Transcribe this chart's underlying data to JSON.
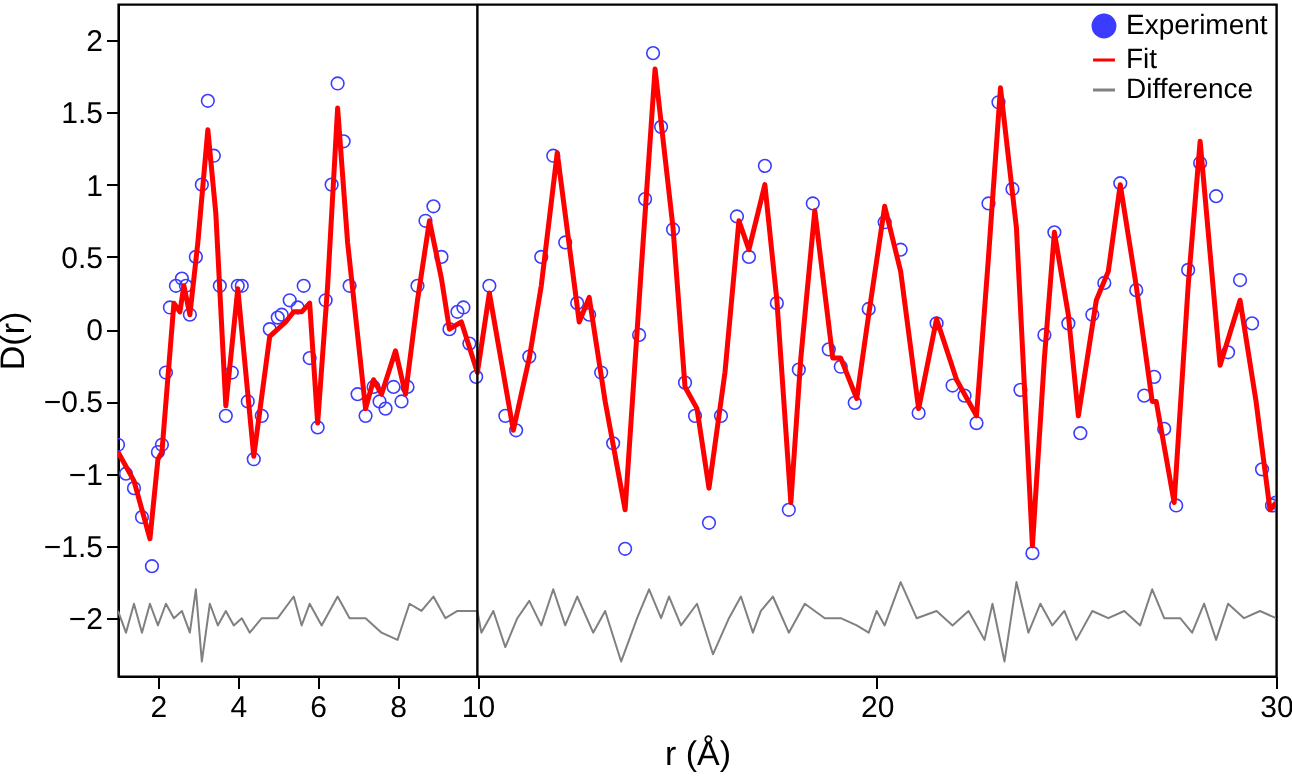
{
  "chart_data": {
    "type": "line",
    "xlabel": "r (Å)",
    "ylabel": "D(r)",
    "xlim": [
      1,
      30
    ],
    "xticks": [
      2,
      4,
      6,
      8,
      10,
      20,
      30
    ],
    "ylim": [
      -2.4,
      2.25
    ],
    "yticks": [
      -2,
      -1.5,
      -1,
      -0.5,
      0,
      0.5,
      1,
      1.5,
      2
    ],
    "grid": false,
    "legend": "top right",
    "ref_lines": [
      {
        "axis": "x",
        "value": 10,
        "color": "#000000"
      }
    ],
    "series": [
      {
        "name": "Experiment",
        "type": "scatter",
        "marker": "circle",
        "color": "#3c3cff",
        "x": [
          1,
          1.2,
          1.4,
          1.6,
          1.85,
          2,
          2.1,
          2.2,
          2.3,
          2.45,
          2.6,
          2.7,
          2.8,
          2.95,
          3.1,
          3.25,
          3.4,
          3.55,
          3.7,
          3.85,
          4,
          4.1,
          4.25,
          4.4,
          4.6,
          4.8,
          5,
          5.1,
          5.3,
          5.5,
          5.65,
          5.8,
          6,
          6.2,
          6.35,
          6.5,
          6.65,
          6.8,
          7,
          7.2,
          7.4,
          7.55,
          7.7,
          7.9,
          8.1,
          8.25,
          8.5,
          8.7,
          8.9,
          9.1,
          9.3,
          9.5,
          9.65,
          9.8,
          9.97,
          10.3,
          10.7,
          10.97,
          11.3,
          11.6,
          11.9,
          12.2,
          12.5,
          12.8,
          13.1,
          13.4,
          13.7,
          14.05,
          14.2,
          14.4,
          14.6,
          14.9,
          15.2,
          15.45,
          15.8,
          16.1,
          16.5,
          16.8,
          17.2,
          17.5,
          17.8,
          18.05,
          18.4,
          18.8,
          19.1,
          19.45,
          19.8,
          20.2,
          20.6,
          21.05,
          21.5,
          21.9,
          22.2,
          22.5,
          22.8,
          23.05,
          23.4,
          23.6,
          23.9,
          24.2,
          24.45,
          24.8,
          25.1,
          25.4,
          25.7,
          26.1,
          26.5,
          26.7,
          26.95,
          27.2,
          27.5,
          27.8,
          28.1,
          28.5,
          28.8,
          29.1,
          29.4,
          29.65,
          29.9,
          30
        ],
        "values": [
          -0.8,
          -1,
          -1.1,
          -1.3,
          -1.64,
          -0.85,
          -0.8,
          -0.3,
          0.15,
          0.3,
          0.35,
          0.3,
          0.1,
          0.5,
          1,
          1.58,
          1.2,
          0.3,
          -0.6,
          -0.3,
          0.3,
          0.3,
          -0.5,
          -0.9,
          -0.6,
          0,
          0.08,
          0.1,
          0.2,
          0.15,
          0.3,
          -0.2,
          -0.68,
          0.2,
          1,
          1.7,
          1.3,
          0.3,
          -0.45,
          -0.6,
          -0.4,
          -0.5,
          -0.55,
          -0.4,
          -0.5,
          -0.4,
          0.3,
          0.75,
          0.85,
          0.5,
          0,
          0.12,
          0.15,
          -0.1,
          -0.33,
          0.3,
          -0.6,
          -0.7,
          -0.19,
          0.5,
          1.2,
          0.6,
          0.18,
          0.1,
          -0.3,
          -0.79,
          -1.52,
          -0.04,
          0.9,
          1.91,
          1.4,
          0.69,
          -0.37,
          -0.6,
          -1.34,
          -0.6,
          0.78,
          0.5,
          1.13,
          0.18,
          -1.25,
          -0.28,
          0.87,
          -0.14,
          -0.26,
          -0.51,
          0.14,
          0.74,
          0.55,
          -0.58,
          0.04,
          -0.39,
          -0.46,
          -0.65,
          0.87,
          1.57,
          0.97,
          -0.42,
          -1.55,
          -0.04,
          0.67,
          0.04,
          -0.72,
          0.1,
          0.32,
          1.01,
          0.27,
          -0.46,
          -0.33,
          -0.69,
          -1.22,
          0.41,
          1.15,
          0.92,
          -0.16,
          0.34,
          0.04,
          -0.97,
          -1.22,
          -1.2
        ]
      },
      {
        "name": "Fit",
        "type": "line",
        "color": "#ff0000",
        "x": [
          1,
          1.4,
          1.8,
          2,
          2.1,
          2.4,
          2.55,
          2.65,
          2.8,
          3,
          3.25,
          3.45,
          3.7,
          4,
          4.4,
          4.8,
          5.2,
          5.4,
          5.6,
          5.8,
          6,
          6.25,
          6.5,
          6.75,
          7.2,
          7.4,
          7.6,
          7.95,
          8.2,
          8.5,
          8.8,
          9.1,
          9.3,
          9.6,
          10,
          10.3,
          10.9,
          11.3,
          11.6,
          12,
          12.55,
          12.8,
          13.2,
          13.7,
          14.1,
          14.45,
          14.9,
          15.2,
          15.5,
          15.8,
          16.2,
          16.55,
          16.8,
          17.2,
          17.5,
          17.85,
          18.1,
          18.45,
          18.9,
          19.1,
          19.5,
          19.8,
          20.2,
          20.6,
          21.05,
          21.5,
          22,
          22.5,
          22.8,
          23.1,
          23.5,
          23.9,
          24.2,
          24.45,
          24.8,
          25.05,
          25.5,
          25.8,
          26.1,
          26.5,
          26.9,
          27,
          27.45,
          27.8,
          28.1,
          28.6,
          29.1,
          29.5,
          29.85,
          30
        ],
        "values": [
          -0.85,
          -1.05,
          -1.45,
          -0.9,
          -0.85,
          0.18,
          0.12,
          0.3,
          0.1,
          0.6,
          1.38,
          0.8,
          -0.53,
          0.28,
          -0.88,
          -0.05,
          0.05,
          0.12,
          0.12,
          0.18,
          -0.65,
          0.3,
          1.53,
          0.6,
          -0.55,
          -0.35,
          -0.45,
          -0.15,
          -0.45,
          0.2,
          0.75,
          0.35,
          0,
          0.05,
          -0.3,
          0.25,
          -0.7,
          -0.2,
          0.3,
          1.22,
          0.05,
          0.22,
          -0.5,
          -1.25,
          0.4,
          1.8,
          0.7,
          -0.4,
          -0.55,
          -1.1,
          -0.3,
          0.75,
          0.55,
          1,
          0.2,
          -1.2,
          -0.2,
          0.82,
          -0.2,
          -0.2,
          -0.48,
          0.1,
          0.85,
          0.4,
          -0.55,
          0.07,
          -0.35,
          -0.6,
          0.5,
          1.67,
          0.7,
          -1.5,
          -0.2,
          0.67,
          0.1,
          -0.6,
          0.2,
          0.4,
          1,
          0.3,
          -0.5,
          -0.5,
          -1.2,
          0.3,
          1.3,
          -0.25,
          0.2,
          -0.5,
          -1.25,
          -1.2
        ]
      },
      {
        "name": "Difference",
        "type": "line",
        "color": "#808080",
        "x": [
          1,
          1.2,
          1.4,
          1.6,
          1.8,
          2,
          2.2,
          2.4,
          2.6,
          2.8,
          2.95,
          3.1,
          3.3,
          3.5,
          3.7,
          3.9,
          4.1,
          4.3,
          4.6,
          5,
          5.4,
          5.6,
          5.8,
          6.1,
          6.5,
          6.8,
          7.2,
          7.6,
          8,
          8.3,
          8.6,
          8.9,
          9.2,
          9.5,
          9.8,
          10,
          10.1,
          10.4,
          10.7,
          11,
          11.3,
          11.6,
          11.9,
          12.2,
          12.5,
          12.9,
          13.2,
          13.6,
          14,
          14.3,
          14.6,
          14.8,
          15.1,
          15.5,
          15.9,
          16.3,
          16.6,
          16.9,
          17.1,
          17.4,
          17.8,
          18.2,
          18.7,
          19.1,
          19.5,
          19.8,
          20,
          20.2,
          20.6,
          21,
          21.5,
          21.9,
          22.3,
          22.7,
          22.9,
          23.2,
          23.5,
          23.8,
          24.1,
          24.4,
          24.7,
          25,
          25.4,
          25.8,
          26.2,
          26.6,
          26.9,
          27.2,
          27.6,
          27.9,
          28.2,
          28.5,
          28.8,
          29.2,
          29.6,
          30
        ],
        "values": [
          -1.95,
          -2.1,
          -1.9,
          -2.1,
          -1.9,
          -2.05,
          -1.9,
          -2,
          -1.95,
          -2.1,
          -1.8,
          -2.3,
          -1.9,
          -2.05,
          -1.95,
          -2.05,
          -2,
          -2.1,
          -2,
          -2,
          -1.85,
          -2.05,
          -1.9,
          -2.05,
          -1.85,
          -2,
          -2,
          -2.1,
          -2.15,
          -1.9,
          -1.95,
          -1.85,
          -2,
          -1.95,
          -1.95,
          -1.95,
          -2.1,
          -1.95,
          -2.2,
          -2,
          -1.88,
          -2.05,
          -1.8,
          -2.05,
          -1.85,
          -2.1,
          -1.95,
          -2.3,
          -2,
          -1.8,
          -2,
          -1.85,
          -2.05,
          -1.9,
          -2.25,
          -2,
          -1.85,
          -2.1,
          -1.95,
          -1.85,
          -2.1,
          -1.9,
          -2,
          -2,
          -2.05,
          -2.1,
          -1.95,
          -2.05,
          -1.75,
          -2,
          -1.95,
          -2.05,
          -1.95,
          -2.15,
          -1.9,
          -2.3,
          -1.75,
          -2.1,
          -1.9,
          -2.05,
          -1.95,
          -2.15,
          -1.95,
          -2,
          -1.95,
          -2.05,
          -1.8,
          -2,
          -2,
          -2.1,
          -1.9,
          -2.15,
          -1.9,
          -2,
          -1.95,
          -2
        ]
      }
    ]
  }
}
